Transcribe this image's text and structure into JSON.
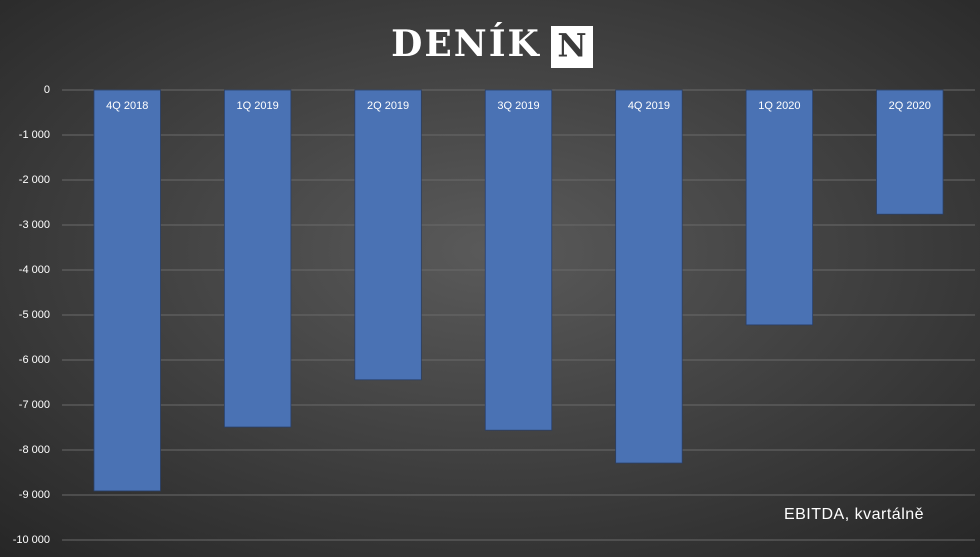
{
  "header": {
    "brand": "DENÍK",
    "brand_mark": "N"
  },
  "chart_data": {
    "type": "bar",
    "categories": [
      "4Q 2018",
      "1Q 2019",
      "2Q 2019",
      "3Q 2019",
      "4Q 2019",
      "1Q 2020",
      "2Q 2020"
    ],
    "values": [
      -8910,
      -7490,
      -6440,
      -7560,
      -8290,
      -5220,
      -2760
    ],
    "color": "#4a72b4",
    "ylim": [
      -10000,
      0
    ],
    "yticks": [
      0,
      {
        "value": -1000,
        "label": "-1 000"
      },
      {
        "value": -2000,
        "label": "-2 000"
      },
      {
        "value": -3000,
        "label": "-3 000"
      },
      {
        "value": -4000,
        "label": "-4 000"
      },
      {
        "value": -5000,
        "label": "-5 000"
      },
      {
        "value": -6000,
        "label": "-6 000"
      },
      {
        "value": -7000,
        "label": "-7 000"
      },
      {
        "value": -8000,
        "label": "-8 000"
      },
      {
        "value": -9000,
        "label": "-9 000"
      },
      {
        "value": -10000,
        "label": "-10 000"
      }
    ],
    "grid": true,
    "annotation": "EBITDA, kvartálně"
  }
}
